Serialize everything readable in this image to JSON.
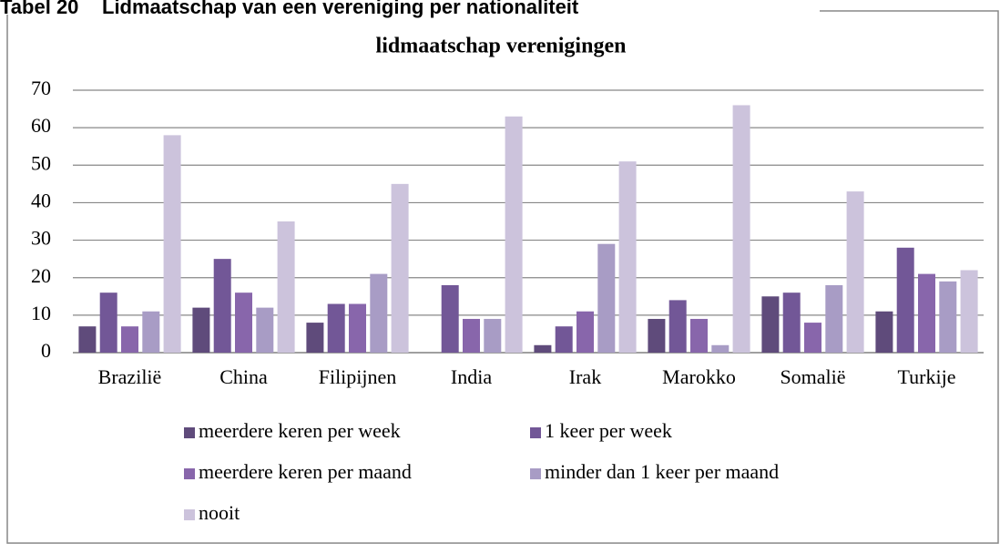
{
  "heading": {
    "label": "Tabel 20",
    "text": "Lidmaatschap van een vereniging per nationaliteit"
  },
  "chart_data": {
    "type": "bar",
    "title": "lidmaatschap verenigingen",
    "categories": [
      "Brazilië",
      "China",
      "Filipijnen",
      "India",
      "Irak",
      "Marokko",
      "Somalië",
      "Turkije"
    ],
    "series": [
      {
        "name": "meerdere keren per week",
        "color": "#5f4b7b",
        "values": [
          7,
          12,
          8,
          0,
          2,
          9,
          15,
          11
        ]
      },
      {
        "name": "1 keer per week",
        "color": "#725797",
        "values": [
          16,
          25,
          13,
          18,
          7,
          14,
          16,
          28
        ]
      },
      {
        "name": "meerdere keren per maand",
        "color": "#8866ab",
        "values": [
          7,
          16,
          13,
          9,
          11,
          9,
          8,
          21
        ]
      },
      {
        "name": "minder dan 1 keer per maand",
        "color": "#a89cc5",
        "values": [
          11,
          12,
          21,
          9,
          29,
          2,
          18,
          19
        ]
      },
      {
        "name": "nooit",
        "color": "#ccc3dc",
        "values": [
          58,
          35,
          45,
          63,
          51,
          66,
          43,
          22
        ]
      }
    ],
    "ylim": [
      0,
      70
    ],
    "yticks": [
      0,
      10,
      20,
      30,
      40,
      50,
      60,
      70
    ],
    "grid": true,
    "legend": "bottom"
  }
}
